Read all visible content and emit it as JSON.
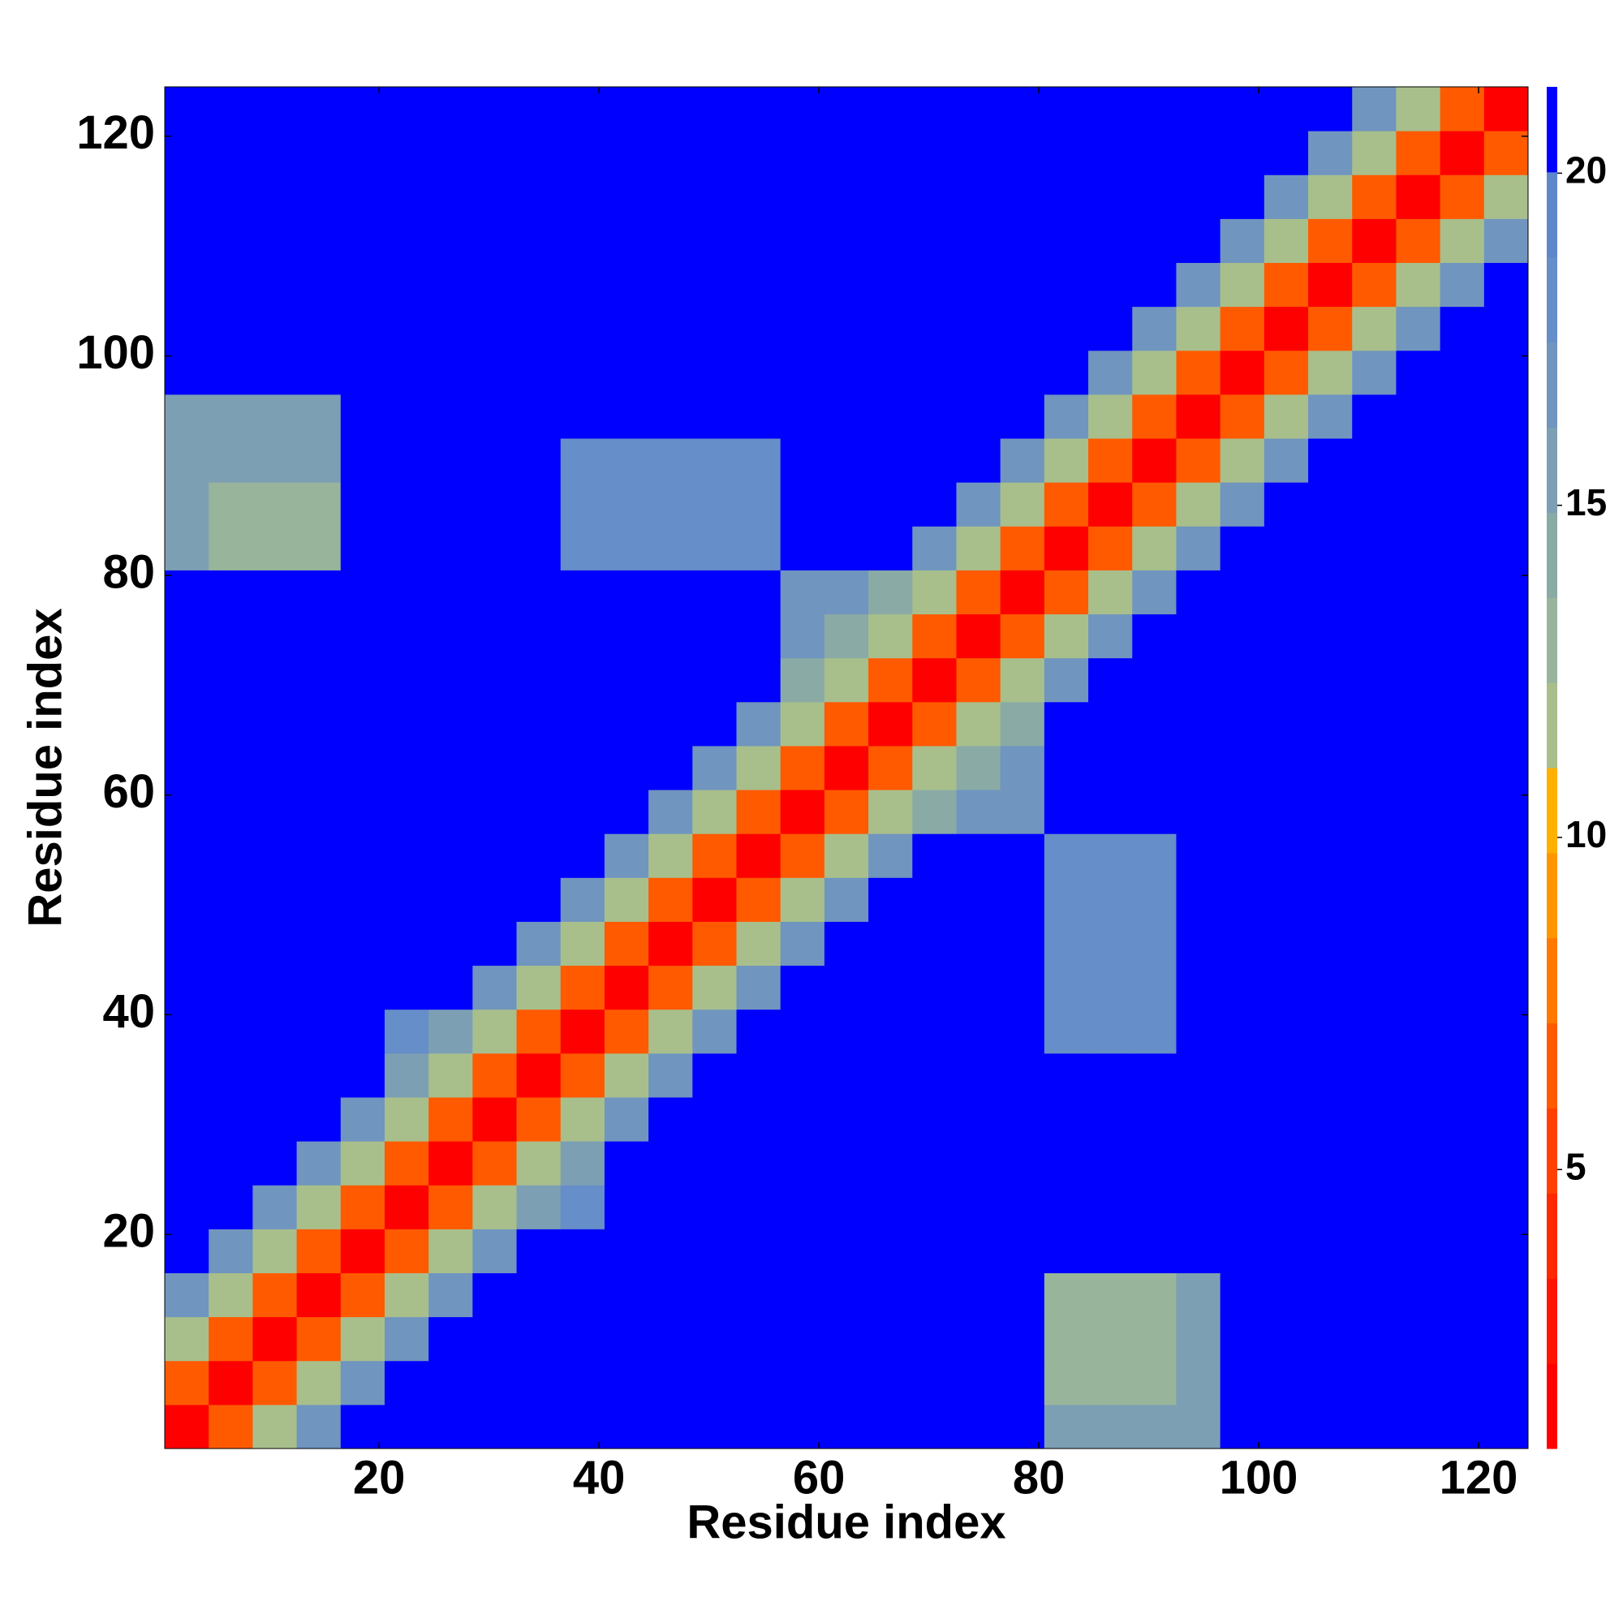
{
  "chart_data": {
    "type": "heatmap",
    "x_label": "Residue index",
    "y_label": "Residue index",
    "xlim": [
      0.5,
      124.5
    ],
    "ylim": [
      0.5,
      124.5
    ],
    "xticks": [
      20,
      40,
      60,
      80,
      100,
      120
    ],
    "yticks": [
      20,
      40,
      60,
      80,
      100,
      120
    ],
    "xbins": [
      0.5,
      4.5,
      8.5,
      12.5,
      16.5,
      20.5,
      24.5,
      28.5,
      32.5,
      36.5,
      40.5,
      44.5,
      48.5,
      52.5,
      56.5,
      60.5,
      64.5,
      68.5,
      72.5,
      76.5,
      80.5,
      84.5,
      88.5,
      92.5,
      96.5,
      100.5,
      104.5,
      108.5,
      112.5,
      116.5,
      120.5,
      124.5
    ],
    "ybins": [
      0.5,
      4.5,
      8.5,
      12.5,
      16.5,
      20.5,
      24.5,
      28.5,
      32.5,
      36.5,
      40.5,
      44.5,
      48.5,
      52.5,
      56.5,
      60.5,
      64.5,
      68.5,
      72.5,
      76.5,
      80.5,
      84.5,
      88.5,
      92.5,
      96.5,
      100.5,
      104.5,
      108.5,
      112.5,
      116.5,
      120.5,
      124.5
    ],
    "clim": [
      0.8,
      21.3
    ],
    "cticks": [
      5,
      10,
      15,
      20
    ],
    "colormap": [
      "#ff0000",
      "#ff1400",
      "#ff2800",
      "#ff4000",
      "#ff5a00",
      "#ff7800",
      "#ff9600",
      "#ffb000",
      "#a8bf8c",
      "#98b49a",
      "#8aaaa6",
      "#7d9fb4",
      "#7095bf",
      "#668ec8",
      "#5e88cc",
      "#0000ff"
    ],
    "z": [
      [
        2,
        7,
        12,
        17,
        21,
        21,
        21,
        21,
        21,
        21,
        21,
        21,
        21,
        21,
        21,
        21,
        21,
        21,
        21,
        21,
        16,
        16,
        16,
        16,
        21,
        21,
        21,
        21,
        21,
        21,
        21
      ],
      [
        7,
        2,
        7,
        12,
        17,
        21,
        21,
        21,
        21,
        21,
        21,
        21,
        21,
        21,
        21,
        21,
        21,
        21,
        21,
        21,
        13,
        13,
        13,
        16,
        21,
        21,
        21,
        21,
        21,
        21,
        21
      ],
      [
        12,
        7,
        2,
        7,
        12,
        17,
        21,
        21,
        21,
        21,
        21,
        21,
        21,
        21,
        21,
        21,
        21,
        21,
        21,
        21,
        13,
        13,
        13,
        16,
        21,
        21,
        21,
        21,
        21,
        21,
        21
      ],
      [
        17,
        12,
        7,
        2,
        7,
        12,
        17,
        21,
        21,
        21,
        21,
        21,
        21,
        21,
        21,
        21,
        21,
        21,
        21,
        21,
        13,
        13,
        13,
        16,
        21,
        21,
        21,
        21,
        21,
        21,
        21
      ],
      [
        21,
        17,
        12,
        7,
        2,
        7,
        12,
        17,
        21,
        21,
        21,
        21,
        21,
        21,
        21,
        21,
        21,
        21,
        21,
        21,
        21,
        21,
        21,
        21,
        21,
        21,
        21,
        21,
        21,
        21,
        21
      ],
      [
        21,
        21,
        17,
        12,
        7,
        2,
        7,
        12,
        15,
        18,
        21,
        21,
        21,
        21,
        21,
        21,
        21,
        21,
        21,
        21,
        21,
        21,
        21,
        21,
        21,
        21,
        21,
        21,
        21,
        21,
        21
      ],
      [
        21,
        21,
        21,
        17,
        12,
        7,
        2,
        7,
        12,
        15,
        21,
        21,
        21,
        21,
        21,
        21,
        21,
        21,
        21,
        21,
        21,
        21,
        21,
        21,
        21,
        21,
        21,
        21,
        21,
        21,
        21
      ],
      [
        21,
        21,
        21,
        21,
        17,
        12,
        7,
        2,
        7,
        12,
        17,
        21,
        21,
        21,
        21,
        21,
        21,
        21,
        21,
        21,
        21,
        21,
        21,
        21,
        21,
        21,
        21,
        21,
        21,
        21,
        21
      ],
      [
        21,
        21,
        21,
        21,
        21,
        15,
        12,
        7,
        2,
        7,
        12,
        17,
        21,
        21,
        21,
        21,
        21,
        21,
        21,
        21,
        21,
        21,
        21,
        21,
        21,
        21,
        21,
        21,
        21,
        21,
        21
      ],
      [
        21,
        21,
        21,
        21,
        21,
        18,
        15,
        12,
        7,
        2,
        7,
        12,
        17,
        21,
        21,
        21,
        21,
        21,
        21,
        21,
        18,
        18,
        18,
        21,
        21,
        21,
        21,
        21,
        21,
        21,
        21
      ],
      [
        21,
        21,
        21,
        21,
        21,
        21,
        21,
        17,
        12,
        7,
        2,
        7,
        12,
        17,
        21,
        21,
        21,
        21,
        21,
        21,
        18,
        18,
        18,
        21,
        21,
        21,
        21,
        21,
        21,
        21,
        21
      ],
      [
        21,
        21,
        21,
        21,
        21,
        21,
        21,
        21,
        17,
        12,
        7,
        2,
        7,
        12,
        17,
        21,
        21,
        21,
        21,
        21,
        18,
        18,
        18,
        21,
        21,
        21,
        21,
        21,
        21,
        21,
        21
      ],
      [
        21,
        21,
        21,
        21,
        21,
        21,
        21,
        21,
        21,
        17,
        12,
        7,
        2,
        7,
        12,
        17,
        21,
        21,
        21,
        21,
        18,
        18,
        18,
        21,
        21,
        21,
        21,
        21,
        21,
        21,
        21
      ],
      [
        21,
        21,
        21,
        21,
        21,
        21,
        21,
        21,
        21,
        21,
        17,
        12,
        7,
        2,
        7,
        12,
        17,
        21,
        21,
        21,
        18,
        18,
        18,
        21,
        21,
        21,
        21,
        21,
        21,
        21,
        21
      ],
      [
        21,
        21,
        21,
        21,
        21,
        21,
        21,
        21,
        21,
        21,
        21,
        17,
        12,
        7,
        2,
        7,
        12,
        14,
        17,
        17,
        21,
        21,
        21,
        21,
        21,
        21,
        21,
        21,
        21,
        21,
        21
      ],
      [
        21,
        21,
        21,
        21,
        21,
        21,
        21,
        21,
        21,
        21,
        21,
        21,
        17,
        12,
        7,
        2,
        7,
        12,
        14,
        17,
        21,
        21,
        21,
        21,
        21,
        21,
        21,
        21,
        21,
        21,
        21
      ],
      [
        21,
        21,
        21,
        21,
        21,
        21,
        21,
        21,
        21,
        21,
        21,
        21,
        21,
        17,
        12,
        7,
        2,
        7,
        12,
        14,
        21,
        21,
        21,
        21,
        21,
        21,
        21,
        21,
        21,
        21,
        21
      ],
      [
        21,
        21,
        21,
        21,
        21,
        21,
        21,
        21,
        21,
        21,
        21,
        21,
        21,
        21,
        14,
        12,
        7,
        2,
        7,
        12,
        17,
        21,
        21,
        21,
        21,
        21,
        21,
        21,
        21,
        21,
        21
      ],
      [
        21,
        21,
        21,
        21,
        21,
        21,
        21,
        21,
        21,
        21,
        21,
        21,
        21,
        21,
        17,
        14,
        12,
        7,
        2,
        7,
        12,
        17,
        21,
        21,
        21,
        21,
        21,
        21,
        21,
        21,
        21
      ],
      [
        21,
        21,
        21,
        21,
        21,
        21,
        21,
        21,
        21,
        21,
        21,
        21,
        21,
        21,
        17,
        17,
        14,
        12,
        7,
        2,
        7,
        12,
        17,
        21,
        21,
        21,
        21,
        21,
        21,
        21,
        21
      ],
      [
        16,
        13,
        13,
        13,
        21,
        21,
        21,
        21,
        21,
        18,
        18,
        18,
        18,
        18,
        21,
        21,
        21,
        17,
        12,
        7,
        2,
        7,
        12,
        17,
        21,
        21,
        21,
        21,
        21,
        21,
        21
      ],
      [
        16,
        13,
        13,
        13,
        21,
        21,
        21,
        21,
        21,
        18,
        18,
        18,
        18,
        18,
        21,
        21,
        21,
        21,
        17,
        12,
        7,
        2,
        7,
        12,
        17,
        21,
        21,
        21,
        21,
        21,
        21
      ],
      [
        16,
        16,
        16,
        16,
        21,
        21,
        21,
        21,
        21,
        18,
        18,
        18,
        18,
        18,
        21,
        21,
        21,
        21,
        21,
        17,
        12,
        7,
        2,
        7,
        12,
        17,
        21,
        21,
        21,
        21,
        21
      ],
      [
        16,
        16,
        16,
        16,
        21,
        21,
        21,
        21,
        21,
        21,
        21,
        21,
        21,
        21,
        21,
        21,
        21,
        21,
        21,
        21,
        17,
        12,
        7,
        2,
        7,
        12,
        17,
        21,
        21,
        21,
        21
      ],
      [
        21,
        21,
        21,
        21,
        21,
        21,
        21,
        21,
        21,
        21,
        21,
        21,
        21,
        21,
        21,
        21,
        21,
        21,
        21,
        21,
        21,
        17,
        12,
        7,
        2,
        7,
        12,
        17,
        21,
        21,
        21
      ],
      [
        21,
        21,
        21,
        21,
        21,
        21,
        21,
        21,
        21,
        21,
        21,
        21,
        21,
        21,
        21,
        21,
        21,
        21,
        21,
        21,
        21,
        21,
        17,
        12,
        7,
        2,
        7,
        12,
        17,
        21,
        21
      ],
      [
        21,
        21,
        21,
        21,
        21,
        21,
        21,
        21,
        21,
        21,
        21,
        21,
        21,
        21,
        21,
        21,
        21,
        21,
        21,
        21,
        21,
        21,
        21,
        17,
        12,
        7,
        2,
        7,
        12,
        17,
        21
      ],
      [
        21,
        21,
        21,
        21,
        21,
        21,
        21,
        21,
        21,
        21,
        21,
        21,
        21,
        21,
        21,
        21,
        21,
        21,
        21,
        21,
        21,
        21,
        21,
        21,
        17,
        12,
        7,
        2,
        7,
        12,
        17
      ],
      [
        21,
        21,
        21,
        21,
        21,
        21,
        21,
        21,
        21,
        21,
        21,
        21,
        21,
        21,
        21,
        21,
        21,
        21,
        21,
        21,
        21,
        21,
        21,
        21,
        21,
        17,
        12,
        7,
        2,
        7,
        12
      ],
      [
        21,
        21,
        21,
        21,
        21,
        21,
        21,
        21,
        21,
        21,
        21,
        21,
        21,
        21,
        21,
        21,
        21,
        21,
        21,
        21,
        21,
        21,
        21,
        21,
        21,
        21,
        17,
        12,
        7,
        2,
        7
      ],
      [
        21,
        21,
        21,
        21,
        21,
        21,
        21,
        21,
        21,
        21,
        21,
        21,
        21,
        21,
        21,
        21,
        21,
        21,
        21,
        21,
        21,
        21,
        21,
        21,
        21,
        21,
        21,
        17,
        12,
        7,
        2
      ]
    ]
  }
}
